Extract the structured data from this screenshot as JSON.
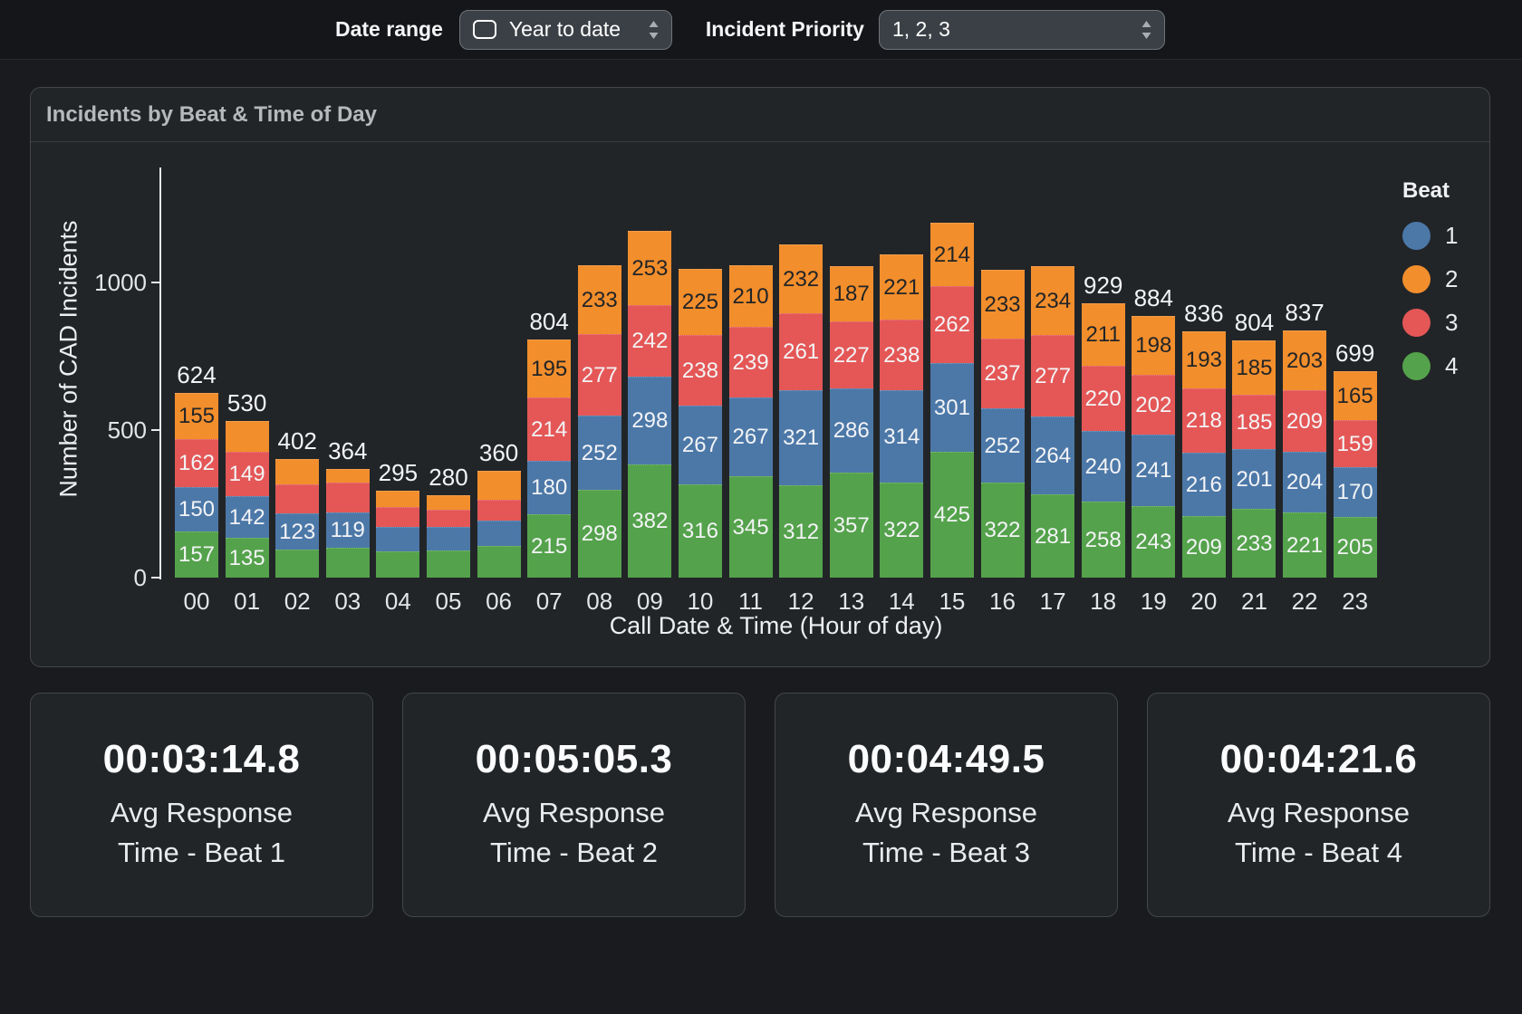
{
  "topbar": {
    "date_range_label": "Date range",
    "date_range_value": "Year to date",
    "incident_priority_label": "Incident Priority",
    "incident_priority_value": "1, 2, 3"
  },
  "chart_card": {
    "title": "Incidents by Beat & Time of Day"
  },
  "chart_data": {
    "type": "bar",
    "stacked": true,
    "title": "Incidents by Beat & Time of Day",
    "xlabel": "Call Date & Time (Hour of day)",
    "ylabel": "Number of CAD Incidents",
    "yticks": [
      0,
      500,
      1000
    ],
    "ylim": [
      0,
      1250
    ],
    "grid": false,
    "legend": {
      "title": "Beat",
      "position": "right",
      "entries": [
        {
          "label": "1",
          "color": "#4c78a8"
        },
        {
          "label": "2",
          "color": "#f28e2c"
        },
        {
          "label": "3",
          "color": "#e45756"
        },
        {
          "label": "4",
          "color": "#54a24b"
        }
      ]
    },
    "categories": [
      "00",
      "01",
      "02",
      "03",
      "04",
      "05",
      "06",
      "07",
      "08",
      "09",
      "10",
      "11",
      "12",
      "13",
      "14",
      "15",
      "16",
      "17",
      "18",
      "19",
      "20",
      "21",
      "22",
      "23"
    ],
    "series": [
      {
        "name": "4",
        "color": "#54a24b",
        "label_style": "light",
        "values": [
          157,
          135,
          95,
          100,
          90,
          92,
          107,
          215,
          298,
          382,
          316,
          345,
          312,
          357,
          322,
          425,
          322,
          281,
          258,
          243,
          209,
          233,
          221,
          205
        ]
      },
      {
        "name": "1",
        "color": "#4c78a8",
        "label_style": "light",
        "values": [
          150,
          142,
          123,
          119,
          83,
          80,
          86,
          180,
          252,
          298,
          267,
          267,
          321,
          286,
          314,
          301,
          252,
          264,
          240,
          241,
          216,
          201,
          204,
          170
        ]
      },
      {
        "name": "3",
        "color": "#e45756",
        "label_style": "light",
        "values": [
          162,
          149,
          98,
          100,
          67,
          58,
          70,
          214,
          277,
          242,
          238,
          239,
          261,
          227,
          238,
          262,
          237,
          277,
          220,
          202,
          218,
          185,
          209,
          159
        ]
      },
      {
        "name": "2",
        "color": "#f28e2c",
        "label_style": "dark",
        "values": [
          155,
          104,
          86,
          45,
          55,
          50,
          97,
          195,
          233,
          253,
          225,
          210,
          232,
          187,
          221,
          214,
          233,
          234,
          211,
          198,
          193,
          185,
          203,
          165
        ]
      }
    ],
    "totals": [
      624,
      530,
      402,
      364,
      295,
      280,
      360,
      804,
      1060,
      1175,
      1046,
      1061,
      1126,
      1057,
      1095,
      1202,
      1044,
      1056,
      929,
      884,
      836,
      804,
      837,
      699
    ],
    "segment_label_min": 115,
    "total_label_max": 1000
  },
  "kpis": [
    {
      "value": "00:03:14.8",
      "label_line1": "Avg Response",
      "label_line2": "Time - Beat 1"
    },
    {
      "value": "00:05:05.3",
      "label_line1": "Avg Response",
      "label_line2": "Time - Beat 2"
    },
    {
      "value": "00:04:49.5",
      "label_line1": "Avg Response",
      "label_line2": "Time - Beat 3"
    },
    {
      "value": "00:04:21.6",
      "label_line1": "Avg Response",
      "label_line2": "Time - Beat 4"
    }
  ]
}
